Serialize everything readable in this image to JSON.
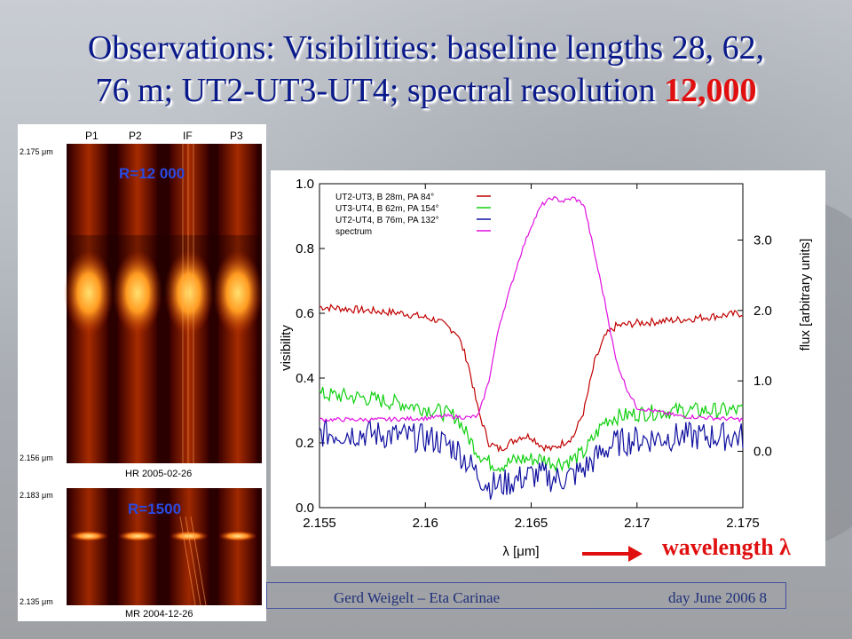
{
  "title": {
    "line1": "Observations: Visibilities: baseline lengths 28, 62,",
    "line2": "76 m; UT2-UT3-UT4; spectral resolution ",
    "highlight": "12,000"
  },
  "spectra_panel": {
    "columns": [
      "P1",
      "P2",
      "IF",
      "P3"
    ],
    "hr": {
      "resolution_label": "R=12 000",
      "top_wavelength": "2.175 μm",
      "bottom_wavelength": "2.156 μm",
      "caption": "HR 2005-02-26"
    },
    "mr": {
      "resolution_label": "R=1500",
      "top_wavelength": "2.183 μm",
      "bottom_wavelength": "2.135 μm",
      "caption": "MR 2004-12-26"
    }
  },
  "chart_data": {
    "type": "line",
    "xlabel": "λ [μm]",
    "ylabel": "visibility",
    "y2label": "flux [arbitrary units]",
    "xlim": [
      2.155,
      2.175
    ],
    "ylim": [
      0.0,
      1.0
    ],
    "y2lim": [
      -0.8,
      3.8
    ],
    "xticks": [
      "2.155",
      "2.16",
      "2.165",
      "2.17",
      "2.175"
    ],
    "yticks": [
      "0.0",
      "0.2",
      "0.4",
      "0.6",
      "0.8",
      "1.0"
    ],
    "y2ticks": [
      "0.0",
      "1.0",
      "2.0",
      "3.0"
    ],
    "legend_position": "top-left",
    "series": [
      {
        "name": "UT2-UT3, B 28m, PA  84°",
        "color": "#c00000",
        "axis": "left",
        "x": [
          2.155,
          2.157,
          2.159,
          2.1605,
          2.1615,
          2.162,
          2.1625,
          2.163,
          2.1635,
          2.164,
          2.1645,
          2.165,
          2.1655,
          2.166,
          2.1665,
          2.167,
          2.1675,
          2.168,
          2.1685,
          2.169,
          2.17,
          2.172,
          2.175
        ],
        "y": [
          0.62,
          0.61,
          0.6,
          0.58,
          0.54,
          0.45,
          0.3,
          0.2,
          0.18,
          0.2,
          0.22,
          0.22,
          0.19,
          0.18,
          0.2,
          0.22,
          0.3,
          0.45,
          0.53,
          0.56,
          0.57,
          0.58,
          0.6
        ]
      },
      {
        "name": "UT3-UT4, B 62m, PA 154°",
        "color": "#10d010",
        "axis": "left",
        "x": [
          2.155,
          2.157,
          2.159,
          2.1605,
          2.1615,
          2.162,
          2.1625,
          2.163,
          2.1635,
          2.164,
          2.1645,
          2.165,
          2.1655,
          2.166,
          2.1665,
          2.167,
          2.1675,
          2.168,
          2.1685,
          2.169,
          2.17,
          2.172,
          2.175
        ],
        "y": [
          0.35,
          0.34,
          0.32,
          0.3,
          0.28,
          0.22,
          0.17,
          0.14,
          0.13,
          0.14,
          0.15,
          0.15,
          0.15,
          0.14,
          0.14,
          0.15,
          0.17,
          0.22,
          0.27,
          0.28,
          0.29,
          0.3,
          0.3
        ]
      },
      {
        "name": "UT2-UT4, B 76m, PA 132°",
        "color": "#1010a0",
        "axis": "left",
        "x": [
          2.155,
          2.157,
          2.159,
          2.1605,
          2.1615,
          2.162,
          2.1625,
          2.163,
          2.1635,
          2.164,
          2.1645,
          2.165,
          2.1655,
          2.166,
          2.1665,
          2.167,
          2.1675,
          2.168,
          2.1685,
          2.169,
          2.17,
          2.172,
          2.175
        ],
        "y": [
          0.23,
          0.23,
          0.22,
          0.21,
          0.18,
          0.14,
          0.1,
          0.07,
          0.07,
          0.08,
          0.09,
          0.1,
          0.1,
          0.09,
          0.09,
          0.1,
          0.12,
          0.15,
          0.18,
          0.2,
          0.21,
          0.22,
          0.22
        ]
      },
      {
        "name": "spectrum",
        "color": "#e010e0",
        "axis": "right",
        "x": [
          2.155,
          2.158,
          2.16,
          2.161,
          2.162,
          2.1625,
          2.163,
          2.1635,
          2.164,
          2.1645,
          2.165,
          2.1655,
          2.166,
          2.1665,
          2.167,
          2.1675,
          2.168,
          2.1685,
          2.169,
          2.1695,
          2.17,
          2.172,
          2.175
        ],
        "y": [
          0.45,
          0.45,
          0.47,
          0.5,
          0.48,
          0.5,
          1.0,
          1.8,
          2.3,
          2.8,
          3.2,
          3.5,
          3.6,
          3.55,
          3.6,
          3.5,
          2.8,
          2.1,
          1.3,
          0.9,
          0.62,
          0.5,
          0.45
        ]
      }
    ]
  },
  "annotation": {
    "wavelength_label": "wavelength λ"
  },
  "footer": {
    "author": "Gerd Weigelt – Eta Carinae",
    "date": "day June 2006   8"
  }
}
